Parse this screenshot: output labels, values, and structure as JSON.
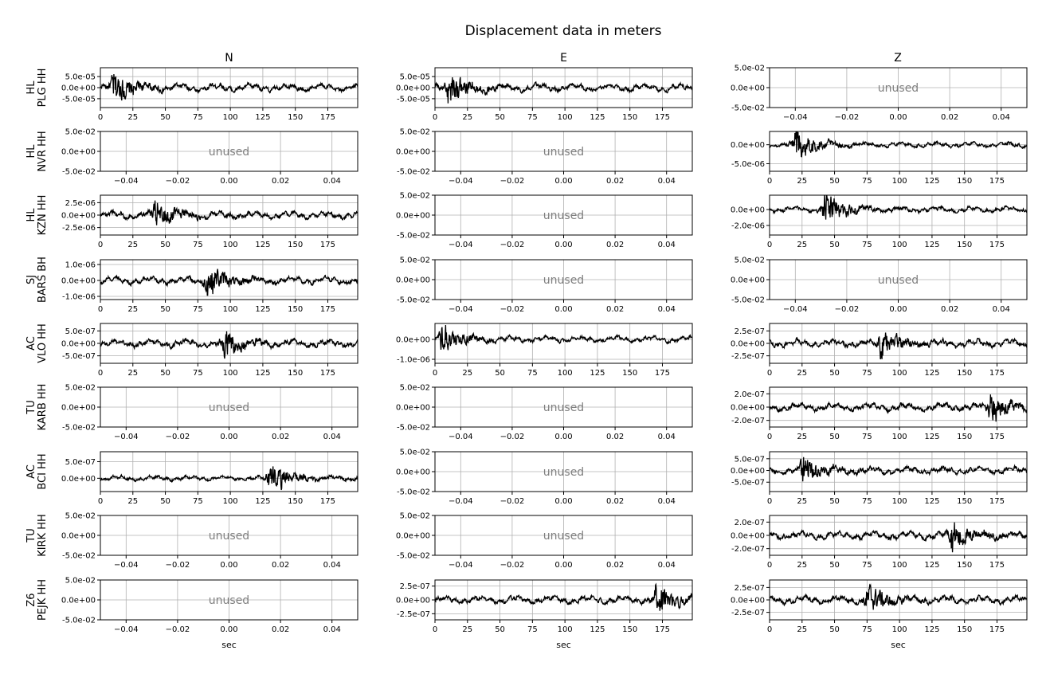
{
  "chart_data": {
    "type": "line",
    "title": "Displacement data in meters",
    "column_titles": [
      "N",
      "E",
      "Z"
    ],
    "xlabel": "sec",
    "unused_label": "unused",
    "grid": true,
    "colors": {
      "trace": "#000000",
      "unused_text": "#808080",
      "grid": "#b0b0b0"
    },
    "row_labels": [
      {
        "network": "HL",
        "station": "PLG HH"
      },
      {
        "network": "HL",
        "station": "NVR HH"
      },
      {
        "network": "HL",
        "station": "KZN HH"
      },
      {
        "network": "SJ",
        "station": "BARS BH"
      },
      {
        "network": "AC",
        "station": "VLO HH"
      },
      {
        "network": "TU",
        "station": "KARB HH"
      },
      {
        "network": "AC",
        "station": "BCI HH"
      },
      {
        "network": "TU",
        "station": "KIRK HH"
      },
      {
        "network": "Z6",
        "station": "PEJK HH"
      }
    ],
    "unused_axis": {
      "xlim": [
        -0.05,
        0.05
      ],
      "ylim": [
        -0.05,
        0.05
      ],
      "xticks": [
        -0.04,
        -0.02,
        0.0,
        0.02,
        0.04
      ],
      "xtick_labels": [
        "−0.04",
        "−0.02",
        "0.00",
        "0.02",
        "0.04"
      ],
      "yticks": [
        0.05,
        0.0,
        -0.05
      ],
      "ytick_labels": [
        "5.0e-02",
        "0.0e+00",
        "-5.0e-02"
      ]
    },
    "time_axis": {
      "xlim": [
        0,
        198
      ],
      "xticks": [
        0,
        25,
        50,
        75,
        100,
        125,
        150,
        175
      ],
      "xtick_labels": [
        "0",
        "25",
        "50",
        "75",
        "100",
        "125",
        "150",
        "175"
      ]
    },
    "panels": [
      {
        "row": 0,
        "col": 0,
        "used": true,
        "ylim": [
          -9e-05,
          9e-05
        ],
        "yticks": [
          5e-05,
          0,
          -5e-05
        ],
        "ytick_labels": [
          "5.0e-05",
          "0.0e+00",
          "-5.0e-05"
        ],
        "peak_amplitude": 8.5e-05,
        "peak_time": 10
      },
      {
        "row": 0,
        "col": 1,
        "used": true,
        "ylim": [
          -9e-05,
          9e-05
        ],
        "yticks": [
          5e-05,
          0,
          -5e-05
        ],
        "ytick_labels": [
          "5.0e-05",
          "0.0e+00",
          "-5.0e-05"
        ],
        "peak_amplitude": 8.8e-05,
        "peak_time": 10
      },
      {
        "row": 0,
        "col": 2,
        "used": false
      },
      {
        "row": 1,
        "col": 0,
        "used": false
      },
      {
        "row": 1,
        "col": 1,
        "used": false
      },
      {
        "row": 1,
        "col": 2,
        "used": true,
        "ylim": [
          -7e-06,
          3.5e-06
        ],
        "yticks": [
          0,
          -5e-06
        ],
        "ytick_labels": [
          "0.0e+00",
          "-5.0e-06"
        ],
        "peak_amplitude": 5.5e-06,
        "peak_time": 20
      },
      {
        "row": 2,
        "col": 0,
        "used": true,
        "ylim": [
          -4e-06,
          4e-06
        ],
        "yticks": [
          2.5e-06,
          0,
          -2.5e-06
        ],
        "ytick_labels": [
          "2.5e-06",
          "0.0e+00",
          "-2.5e-06"
        ],
        "peak_amplitude": 3.5e-06,
        "peak_time": 42
      },
      {
        "row": 2,
        "col": 1,
        "used": false
      },
      {
        "row": 2,
        "col": 2,
        "used": true,
        "ylim": [
          -3.2e-06,
          1.8e-06
        ],
        "yticks": [
          0,
          -2e-06
        ],
        "ytick_labels": [
          "0.0e+00",
          "-2.0e-06"
        ],
        "peak_amplitude": 2.8e-06,
        "peak_time": 42
      },
      {
        "row": 3,
        "col": 0,
        "used": true,
        "ylim": [
          -1.2e-06,
          1.3e-06
        ],
        "yticks": [
          1e-06,
          0,
          -1e-06
        ],
        "ytick_labels": [
          "1.0e-06",
          "0.0e+00",
          "-1.0e-06"
        ],
        "peak_amplitude": 1.2e-06,
        "peak_time": 82
      },
      {
        "row": 3,
        "col": 1,
        "used": false
      },
      {
        "row": 3,
        "col": 2,
        "used": false
      },
      {
        "row": 4,
        "col": 0,
        "used": true,
        "ylim": [
          -8e-07,
          8e-07
        ],
        "yticks": [
          5e-07,
          0,
          -5e-07
        ],
        "ytick_labels": [
          "5.0e-07",
          "0.0e+00",
          "-5.0e-07"
        ],
        "peak_amplitude": 7e-07,
        "peak_time": 95
      },
      {
        "row": 4,
        "col": 1,
        "used": true,
        "ylim": [
          -1.2e-06,
          8e-07
        ],
        "yticks": [
          0,
          -1e-06
        ],
        "ytick_labels": [
          "0.0e+00",
          "-1.0e-06"
        ],
        "peak_amplitude": 9e-07,
        "peak_time": 5
      },
      {
        "row": 4,
        "col": 2,
        "used": true,
        "ylim": [
          -4e-07,
          4e-07
        ],
        "yticks": [
          2.5e-07,
          0,
          -2.5e-07
        ],
        "ytick_labels": [
          "2.5e-07",
          "0.0e+00",
          "-2.5e-07"
        ],
        "peak_amplitude": 3.6e-07,
        "peak_time": 85
      },
      {
        "row": 5,
        "col": 0,
        "used": false
      },
      {
        "row": 5,
        "col": 1,
        "used": false
      },
      {
        "row": 5,
        "col": 2,
        "used": true,
        "ylim": [
          -3e-07,
          3e-07
        ],
        "yticks": [
          2e-07,
          0,
          -2e-07
        ],
        "ytick_labels": [
          "2.0e-07",
          "0.0e+00",
          "-2.0e-07"
        ],
        "peak_amplitude": 2.8e-07,
        "peak_time": 170
      },
      {
        "row": 6,
        "col": 0,
        "used": true,
        "ylim": [
          -4e-07,
          8e-07
        ],
        "yticks": [
          5e-07,
          0
        ],
        "ytick_labels": [
          "5.0e-07",
          "0.0e+00"
        ],
        "peak_amplitude": 6.5e-07,
        "peak_time": 130
      },
      {
        "row": 6,
        "col": 1,
        "used": false
      },
      {
        "row": 6,
        "col": 2,
        "used": true,
        "ylim": [
          -9e-07,
          8e-07
        ],
        "yticks": [
          5e-07,
          0,
          -5e-07
        ],
        "ytick_labels": [
          "5.0e-07",
          "0.0e+00",
          "-5.0e-07"
        ],
        "peak_amplitude": 7e-07,
        "peak_time": 25
      },
      {
        "row": 7,
        "col": 0,
        "used": false
      },
      {
        "row": 7,
        "col": 1,
        "used": false
      },
      {
        "row": 7,
        "col": 2,
        "used": true,
        "ylim": [
          -3e-07,
          3e-07
        ],
        "yticks": [
          2e-07,
          0,
          -2e-07
        ],
        "ytick_labels": [
          "2.0e-07",
          "0.0e+00",
          "-2.0e-07"
        ],
        "peak_amplitude": 2.8e-07,
        "peak_time": 140
      },
      {
        "row": 8,
        "col": 0,
        "used": false
      },
      {
        "row": 8,
        "col": 1,
        "used": true,
        "ylim": [
          -3.6e-07,
          3.6e-07
        ],
        "yticks": [
          2.5e-07,
          0,
          -2.5e-07
        ],
        "ytick_labels": [
          "2.5e-07",
          "0.0e+00",
          "-2.5e-07"
        ],
        "peak_amplitude": 3.3e-07,
        "peak_time": 170
      },
      {
        "row": 8,
        "col": 2,
        "used": true,
        "ylim": [
          -4e-07,
          4e-07
        ],
        "yticks": [
          2.5e-07,
          0,
          -2.5e-07
        ],
        "ytick_labels": [
          "2.5e-07",
          "0.0e+00",
          "-2.5e-07"
        ],
        "peak_amplitude": 3.5e-07,
        "peak_time": 75
      }
    ]
  }
}
